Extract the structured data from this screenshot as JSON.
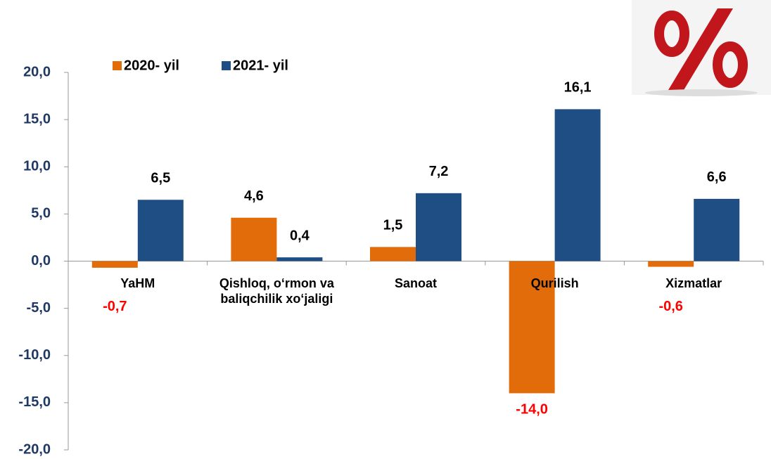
{
  "chart_data": {
    "type": "bar",
    "categories": [
      "YaHM",
      "Qishloq, o‘rmon va baliqchilik xo‘jaligi",
      "Sanoat",
      "Qurilish",
      "Xizmatlar"
    ],
    "series": [
      {
        "name": "2020- yil",
        "color": "#e36c0a",
        "values": [
          -0.7,
          4.6,
          1.5,
          -14.0,
          -0.6
        ],
        "value_labels": [
          "-0,7",
          "4,6",
          "1,5",
          "-14,0",
          "-0,6"
        ]
      },
      {
        "name": "2021- yil",
        "color": "#1f4e85",
        "values": [
          6.5,
          0.4,
          7.2,
          16.1,
          6.6
        ],
        "value_labels": [
          "6,5",
          "0,4",
          "7,2",
          "16,1",
          "6,6"
        ]
      }
    ],
    "ylim": [
      -20,
      20
    ],
    "yticks": [
      {
        "value": -20,
        "label": "-20,0"
      },
      {
        "value": -15,
        "label": "-15,0"
      },
      {
        "value": -10,
        "label": "-10,0"
      },
      {
        "value": -5,
        "label": "-5,0"
      },
      {
        "value": 0,
        "label": "0,0"
      },
      {
        "value": 5,
        "label": "5,0"
      },
      {
        "value": 10,
        "label": "10,0"
      },
      {
        "value": 15,
        "label": "15,0"
      },
      {
        "value": 20,
        "label": "20,0"
      }
    ],
    "negative_label_color": "#ff0000",
    "legend": "top"
  }
}
